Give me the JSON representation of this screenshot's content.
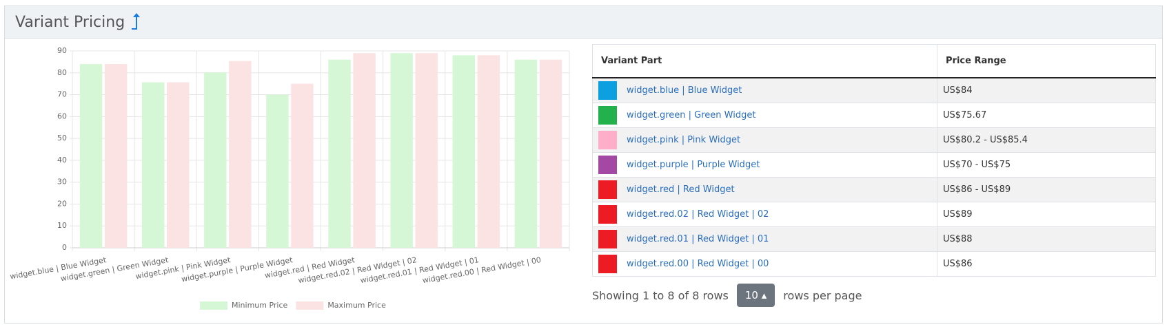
{
  "header": {
    "title": "Variant Pricing"
  },
  "chart_data": {
    "type": "bar",
    "categories": [
      "widget.blue | Blue Widget",
      "widget.green | Green Widget",
      "widget.pink | Pink Widget",
      "widget.purple | Purple Widget",
      "widget.red | Red Widget",
      "widget.red.02 | Red Widget | 02",
      "widget.red.01 | Red Widget | 01",
      "widget.red.00 | Red Widget | 00"
    ],
    "series": [
      {
        "name": "Minimum Price",
        "color": "#d5f7d5",
        "values": [
          84,
          75.67,
          80.2,
          70,
          86,
          89,
          88,
          86
        ]
      },
      {
        "name": "Maximum Price",
        "color": "#fbe3e3",
        "values": [
          84,
          75.67,
          85.4,
          75,
          89,
          89,
          88,
          86
        ]
      }
    ],
    "ylim": [
      0,
      90
    ],
    "yticks": [
      0,
      10,
      20,
      30,
      40,
      50,
      60,
      70,
      80,
      90
    ],
    "grid": true,
    "legend": "bottom"
  },
  "table": {
    "columns": [
      "Variant Part",
      "Price Range"
    ],
    "rows": [
      {
        "color": "#0ca0e0",
        "part": "widget.blue | Blue Widget",
        "price": "US$84"
      },
      {
        "color": "#22b14c",
        "part": "widget.green | Green Widget",
        "price": "US$75.67"
      },
      {
        "color": "#ffaec9",
        "part": "widget.pink | Pink Widget",
        "price": "US$80.2 - US$85.4"
      },
      {
        "color": "#a349a4",
        "part": "widget.purple | Purple Widget",
        "price": "US$70 - US$75"
      },
      {
        "color": "#ed1c24",
        "part": "widget.red | Red Widget",
        "price": "US$86 - US$89"
      },
      {
        "color": "#ed1c24",
        "part": "widget.red.02 | Red Widget | 02",
        "price": "US$89"
      },
      {
        "color": "#ed1c24",
        "part": "widget.red.01 | Red Widget | 01",
        "price": "US$88"
      },
      {
        "color": "#ed1c24",
        "part": "widget.red.00 | Red Widget | 00",
        "price": "US$86"
      }
    ]
  },
  "pagination": {
    "summary": "Showing 1 to 8 of 8 rows",
    "page_size": "10",
    "suffix": "rows per page"
  }
}
